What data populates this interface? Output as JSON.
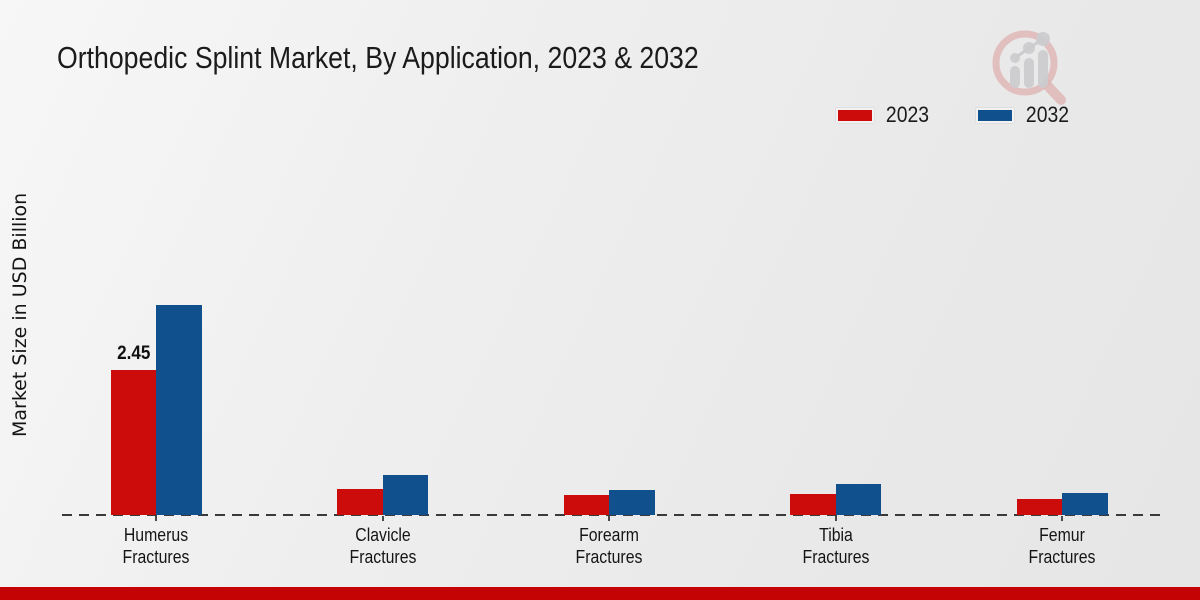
{
  "title": "Orthopedic Splint Market, By Application, 2023 & 2032",
  "ylabel": "Market Size in USD Billion",
  "legend": [
    {
      "label": "2023",
      "color": "#cc0b0b"
    },
    {
      "label": "2032",
      "color": "#10508d"
    }
  ],
  "colors": {
    "series_2023": "#cc0b0b",
    "series_2032": "#10508d",
    "footer_band": "#c40404",
    "baseline": "#3a3a3a",
    "background": "#ececec"
  },
  "branding": {
    "logo_icon": "magnifier-bar-chart-logo"
  },
  "chart_data": {
    "type": "bar",
    "title": "Orthopedic Splint Market, By Application, 2023 & 2032",
    "xlabel": "",
    "ylabel": "Market Size in USD Billion",
    "categories": [
      "Humerus Fractures",
      "Clavicle Fractures",
      "Forearm Fractures",
      "Tibia Fractures",
      "Femur Fractures"
    ],
    "series": [
      {
        "name": "2023",
        "color": "#cc0b0b",
        "values": [
          2.45,
          0.44,
          0.33,
          0.35,
          0.27
        ]
      },
      {
        "name": "2032",
        "color": "#10508d",
        "values": [
          3.55,
          0.68,
          0.42,
          0.52,
          0.37
        ]
      }
    ],
    "data_labels": [
      {
        "series": "2023",
        "category": "Humerus Fractures",
        "text": "2.45"
      }
    ],
    "ylim": [
      0,
      4
    ],
    "grid": false,
    "y_axis_ticks": "none",
    "baseline_style": "dashed",
    "legend_position": "top-right"
  }
}
